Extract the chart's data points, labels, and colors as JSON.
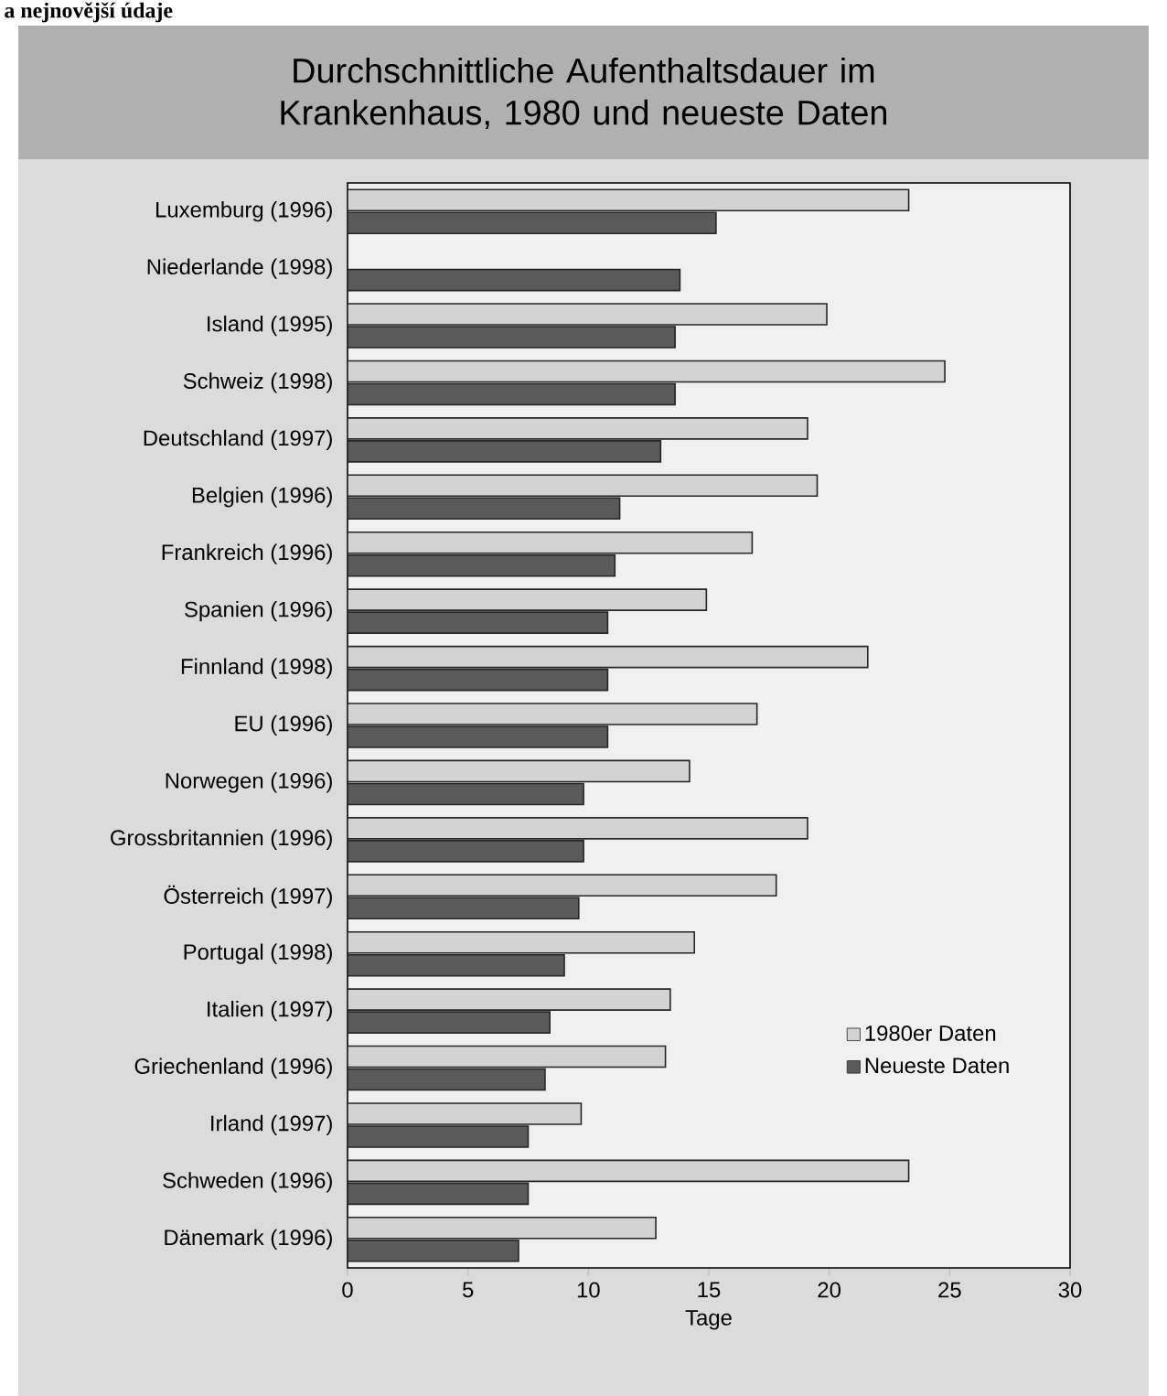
{
  "chart_data": {
    "type": "bar",
    "orientation": "horizontal",
    "title": "Durchschnittliche Aufenthaltsdauer im Krankenhaus, 1980 und neueste Daten",
    "xlabel": "Tage",
    "annotations": [
      "a nejnovější údaje"
    ],
    "categories": [
      "Luxemburg (1996)",
      "Niederlande (1998)",
      "Island (1995)",
      "Schweiz (1998)",
      "Deutschland (1997)",
      "Belgien (1996)",
      "Frankreich (1996)",
      "Spanien (1996)",
      "Finnland (1998)",
      "EU (1996)",
      "Norwegen (1996)",
      "Grossbritannien (1996)",
      "Österreich (1997)",
      "Portugal (1998)",
      "Italien (1997)",
      "Griechenland (1996)",
      "Irland (1997)",
      "Schweden (1996)",
      "Dänemark (1996)"
    ],
    "series": [
      {
        "name": "1980er Daten",
        "color": "#d3d3d3",
        "values": [
          23.3,
          null,
          19.9,
          24.8,
          19.1,
          19.5,
          16.8,
          14.9,
          21.6,
          17.0,
          14.2,
          19.1,
          17.8,
          14.4,
          13.4,
          13.2,
          9.7,
          23.3,
          12.8
        ]
      },
      {
        "name": "Neueste Daten",
        "color": "#5a5a5a",
        "values": [
          15.3,
          13.8,
          13.6,
          13.6,
          13.0,
          11.3,
          11.1,
          10.8,
          10.8,
          10.8,
          9.8,
          9.8,
          9.6,
          9.0,
          8.4,
          8.2,
          7.5,
          7.5,
          7.1
        ]
      }
    ],
    "xlim": [
      0,
      30
    ],
    "xticks": [
      0,
      5,
      10,
      15,
      20,
      25,
      30
    ],
    "legend": "bottom right"
  }
}
